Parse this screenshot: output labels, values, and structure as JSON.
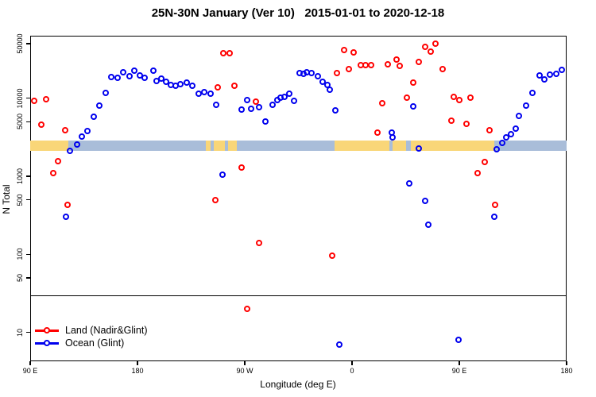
{
  "title": "25N-30N January (Ver 10)   2015-01-01 to 2020-12-18",
  "colors": {
    "land": "#ff0000",
    "ocean": "#0000ee",
    "band_land": "#f9d678",
    "band_ocean": "#a9bdd9",
    "axis": "#000000"
  },
  "legend": {
    "items": [
      {
        "label": "Land (Nadir&Glint)",
        "series": "land"
      },
      {
        "label": "Ocean (Glint)",
        "series": "ocean"
      }
    ],
    "position": "bottom-left"
  },
  "chart_data": {
    "type": "scatter",
    "title": "25N-30N January (Ver 10)   2015-01-01 to 2020-12-18",
    "xlabel": "Longitude (deg E)",
    "ylabel": "N Total",
    "grid": false,
    "y_scale": "log",
    "ylim": [
      4.3,
      63000
    ],
    "x_range_deg": [
      90,
      540
    ],
    "x_ticks": [
      {
        "deg": 90,
        "label": "90 E"
      },
      {
        "deg": 180,
        "label": "180"
      },
      {
        "deg": 270,
        "label": "90 W"
      },
      {
        "deg": 360,
        "label": "0"
      },
      {
        "deg": 450,
        "label": "90 E"
      },
      {
        "deg": 540,
        "label": "180"
      }
    ],
    "y_ticks": [
      {
        "value": 10,
        "label": "10"
      },
      {
        "value": 50,
        "label": "50"
      },
      {
        "value": 100,
        "label": "100"
      },
      {
        "value": 500,
        "label": "500"
      },
      {
        "value": 1000,
        "label": "1000"
      },
      {
        "value": 5000,
        "label": "5000"
      },
      {
        "value": 10000,
        "label": "10000"
      },
      {
        "value": 50000,
        "label": "50000"
      }
    ],
    "threshold_line_value": 30,
    "surface_band": {
      "top_value": 2870,
      "bottom_value": 2115,
      "segments": [
        {
          "from_deg": 90,
          "to_deg": 122,
          "surface": "land"
        },
        {
          "from_deg": 122,
          "to_deg": 237,
          "surface": "ocean"
        },
        {
          "from_deg": 237,
          "to_deg": 241,
          "surface": "land"
        },
        {
          "from_deg": 241,
          "to_deg": 244,
          "surface": "ocean"
        },
        {
          "from_deg": 244,
          "to_deg": 253,
          "surface": "land"
        },
        {
          "from_deg": 253,
          "to_deg": 256,
          "surface": "ocean"
        },
        {
          "from_deg": 256,
          "to_deg": 263,
          "surface": "land"
        },
        {
          "from_deg": 263,
          "to_deg": 345,
          "surface": "ocean"
        },
        {
          "from_deg": 345,
          "to_deg": 391,
          "surface": "land"
        },
        {
          "from_deg": 391,
          "to_deg": 394,
          "surface": "ocean"
        },
        {
          "from_deg": 394,
          "to_deg": 405,
          "surface": "land"
        },
        {
          "from_deg": 405,
          "to_deg": 409,
          "surface": "ocean"
        },
        {
          "from_deg": 409,
          "to_deg": 479,
          "surface": "land"
        },
        {
          "from_deg": 479,
          "to_deg": 540,
          "surface": "ocean"
        }
      ]
    },
    "series": [
      {
        "name": "Land (Nadir&Glint)",
        "key": "land",
        "points": [
          [
            93,
            9200
          ],
          [
            103,
            9700
          ],
          [
            99,
            4600
          ],
          [
            119,
            3900
          ],
          [
            113,
            1560
          ],
          [
            109,
            1100
          ],
          [
            121,
            430
          ],
          [
            245,
            495
          ],
          [
            247,
            13700
          ],
          [
            252,
            38000
          ],
          [
            257,
            38000
          ],
          [
            261,
            14400
          ],
          [
            267,
            1290
          ],
          [
            272,
            20
          ],
          [
            279,
            9000
          ],
          [
            282,
            140
          ],
          [
            343,
            96
          ],
          [
            347,
            21000
          ],
          [
            353,
            41000
          ],
          [
            357,
            23600
          ],
          [
            361,
            39000
          ],
          [
            367,
            26500
          ],
          [
            371,
            26500
          ],
          [
            376,
            26500
          ],
          [
            381,
            3600
          ],
          [
            385,
            8600
          ],
          [
            390,
            27000
          ],
          [
            397,
            31000
          ],
          [
            400,
            26000
          ],
          [
            406,
            10200
          ],
          [
            411,
            15800
          ],
          [
            416,
            29000
          ],
          [
            421,
            46000
          ],
          [
            426,
            39500
          ],
          [
            430,
            50000
          ],
          [
            436,
            23600
          ],
          [
            443,
            5200
          ],
          [
            445,
            10400
          ],
          [
            450,
            9500
          ],
          [
            456,
            4700
          ],
          [
            459,
            10200
          ],
          [
            465,
            1100
          ],
          [
            471,
            1520
          ],
          [
            475,
            3900
          ],
          [
            480,
            430
          ]
        ]
      },
      {
        "name": "Ocean (Glint)",
        "key": "ocean",
        "points": [
          [
            120,
            300
          ],
          [
            123,
            2100
          ],
          [
            129,
            2550
          ],
          [
            133,
            3200
          ],
          [
            138,
            3800
          ],
          [
            143,
            5800
          ],
          [
            148,
            8000
          ],
          [
            153,
            11700
          ],
          [
            158,
            18700
          ],
          [
            163,
            18200
          ],
          [
            168,
            21500
          ],
          [
            173,
            19100
          ],
          [
            177,
            22500
          ],
          [
            182,
            19600
          ],
          [
            186,
            18200
          ],
          [
            193,
            22500
          ],
          [
            196,
            16600
          ],
          [
            200,
            17800
          ],
          [
            204,
            16200
          ],
          [
            208,
            14700
          ],
          [
            212,
            14400
          ],
          [
            216,
            15100
          ],
          [
            221,
            15800
          ],
          [
            226,
            14400
          ],
          [
            231,
            11400
          ],
          [
            236,
            12000
          ],
          [
            241,
            11400
          ],
          [
            246,
            8200
          ],
          [
            251,
            1050
          ],
          [
            267,
            7100
          ],
          [
            272,
            9400
          ],
          [
            275,
            7300
          ],
          [
            282,
            7600
          ],
          [
            287,
            5000
          ],
          [
            293,
            8200
          ],
          [
            297,
            9450
          ],
          [
            300,
            10150
          ],
          [
            303,
            10400
          ],
          [
            307,
            11400
          ],
          [
            311,
            9200
          ],
          [
            316,
            21000
          ],
          [
            319,
            20500
          ],
          [
            322,
            21500
          ],
          [
            326,
            21000
          ],
          [
            331,
            19100
          ],
          [
            335,
            16200
          ],
          [
            339,
            14700
          ],
          [
            341,
            12800
          ],
          [
            346,
            7000
          ],
          [
            349,
            7
          ],
          [
            393,
            3620
          ],
          [
            394,
            3150
          ],
          [
            408,
            810
          ],
          [
            411,
            7900
          ],
          [
            416,
            2270
          ],
          [
            421,
            480
          ],
          [
            424,
            240
          ],
          [
            449,
            8
          ],
          [
            479,
            300
          ],
          [
            481,
            2200
          ],
          [
            486,
            2700
          ],
          [
            489,
            3150
          ],
          [
            493,
            3500
          ],
          [
            497,
            4100
          ],
          [
            500,
            6000
          ],
          [
            506,
            8000
          ],
          [
            511,
            11700
          ],
          [
            517,
            19600
          ],
          [
            521,
            17400
          ],
          [
            526,
            20100
          ],
          [
            531,
            20500
          ],
          [
            536,
            23100
          ]
        ]
      }
    ]
  }
}
